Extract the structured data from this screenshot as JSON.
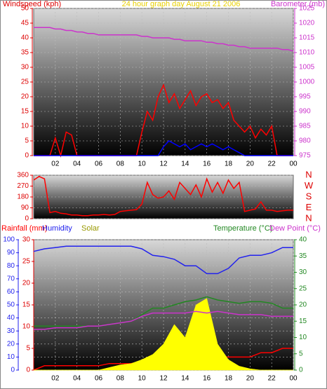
{
  "chart_data": [
    {
      "type": "line",
      "title": "24 hour graph day   August 21 2006",
      "ylabel": "Windspeed (kph)",
      "y2label": "Barometer (mb)",
      "x": [
        0,
        0.5,
        1,
        1.5,
        2,
        2.5,
        3,
        3.5,
        4,
        4.5,
        5,
        5.5,
        6,
        6.5,
        7,
        7.5,
        8,
        8.5,
        9,
        9.5,
        10,
        10.5,
        11,
        11.5,
        12,
        12.5,
        13,
        13.5,
        14,
        14.5,
        15,
        15.5,
        16,
        16.5,
        17,
        17.5,
        18,
        18.5,
        19,
        19.5,
        20,
        20.5,
        21,
        21.5,
        22,
        22.5,
        23,
        23.5,
        24
      ],
      "xlim": [
        0,
        24
      ],
      "xticks": [
        {
          "value": 2,
          "label": "02"
        },
        {
          "value": 4,
          "label": "04"
        },
        {
          "value": 6,
          "label": "06"
        },
        {
          "value": 8,
          "label": "08"
        },
        10,
        12,
        14,
        16,
        18,
        20,
        22,
        {
          "value": 24,
          "label": "00"
        }
      ],
      "ylim": [
        0,
        50
      ],
      "yticks": [
        0,
        5,
        10,
        15,
        20,
        25,
        30,
        35,
        40,
        45,
        50
      ],
      "y2lim": [
        975,
        1025
      ],
      "y2ticks": [
        975,
        980,
        985,
        990,
        995,
        1000,
        1005,
        1010,
        1015,
        1020,
        1025
      ],
      "grid": true,
      "series": [
        {
          "color": "#ff0000",
          "values": [
            0,
            0,
            0,
            0,
            6,
            0,
            8,
            7,
            0,
            0,
            0,
            0,
            0,
            0,
            0,
            0,
            0,
            0,
            0,
            0,
            8,
            15,
            12,
            20,
            24,
            18,
            21,
            16,
            19,
            22,
            17,
            20,
            21,
            18,
            19,
            16,
            18,
            12,
            10,
            8,
            10,
            6,
            9,
            7,
            10,
            0,
            0,
            0,
            0
          ]
        },
        {
          "color": "#0000ff",
          "values": [
            0,
            0,
            0,
            0,
            0,
            0,
            0,
            0,
            0,
            0,
            0,
            0,
            0,
            0,
            0,
            0,
            0,
            0,
            0,
            0,
            0,
            0,
            0,
            0,
            3,
            5,
            4,
            3,
            4,
            2,
            3,
            4,
            3,
            4,
            3,
            2,
            3,
            2,
            1,
            0,
            0,
            0,
            0,
            0,
            0,
            0,
            0,
            0,
            0
          ]
        },
        {
          "color": "#cc33cc",
          "axis": "y2",
          "values": [
            1018.5,
            1018.5,
            1018.5,
            1018.5,
            1018,
            1018,
            1017.5,
            1017.5,
            1017,
            1017,
            1016.5,
            1016.5,
            1016,
            1016,
            1016,
            1016,
            1016,
            1016,
            1016,
            1016,
            1015.5,
            1015.5,
            1015,
            1015,
            1015,
            1015,
            1014.5,
            1014.5,
            1014,
            1014,
            1014,
            1014,
            1013.5,
            1013.5,
            1013,
            1013,
            1012.5,
            1012.5,
            1012,
            1012,
            1011.5,
            1011.5,
            1011.5,
            1011.5,
            1011.5,
            1011.5,
            1011,
            1011,
            1010.5
          ]
        }
      ]
    },
    {
      "type": "line",
      "x": [
        0,
        0.5,
        1,
        1.5,
        2,
        2.5,
        3,
        3.5,
        4,
        4.5,
        5,
        5.5,
        6,
        6.5,
        7,
        7.5,
        8,
        8.5,
        9,
        9.5,
        10,
        10.5,
        11,
        11.5,
        12,
        12.5,
        13,
        13.5,
        14,
        14.5,
        15,
        15.5,
        16,
        16.5,
        17,
        17.5,
        18,
        18.5,
        19,
        19.5,
        20,
        20.5,
        21,
        21.5,
        22,
        22.5,
        23,
        23.5,
        24
      ],
      "xlim": [
        0,
        24
      ],
      "ylim": [
        0,
        360
      ],
      "yticks": [
        0,
        90,
        180,
        270,
        360
      ],
      "y2lim": [
        0,
        360
      ],
      "y2ticks": [
        {
          "value": 360,
          "label": "N"
        },
        {
          "value": 270,
          "label": "W"
        },
        {
          "value": 180,
          "label": "S"
        },
        {
          "value": 90,
          "label": "E"
        },
        {
          "value": 0,
          "label": "N"
        }
      ],
      "grid": true,
      "series": [
        {
          "color": "#ff0000",
          "values": [
            320,
            350,
            330,
            50,
            60,
            45,
            40,
            30,
            30,
            25,
            25,
            30,
            30,
            35,
            30,
            35,
            60,
            65,
            70,
            75,
            120,
            300,
            200,
            170,
            180,
            230,
            160,
            300,
            250,
            200,
            280,
            180,
            330,
            220,
            300,
            210,
            320,
            250,
            300,
            60,
            70,
            80,
            140,
            70,
            70,
            60,
            65,
            70,
            70
          ]
        }
      ]
    },
    {
      "type": "line",
      "x": [
        0,
        1,
        2,
        3,
        4,
        5,
        6,
        7,
        8,
        9,
        10,
        11,
        12,
        13,
        14,
        15,
        16,
        17,
        18,
        19,
        20,
        21,
        22,
        23,
        24
      ],
      "xlim": [
        0,
        24
      ],
      "xticks": [
        {
          "value": 2,
          "label": "02"
        },
        {
          "value": 4,
          "label": "04"
        },
        {
          "value": 6,
          "label": "06"
        },
        {
          "value": 8,
          "label": "08"
        },
        10,
        12,
        14,
        16,
        18,
        20,
        22,
        {
          "value": 24,
          "label": "00"
        }
      ],
      "ylim": [
        0,
        100
      ],
      "yticks": [
        0,
        10,
        20,
        30,
        40,
        50,
        60,
        70,
        80,
        90,
        100
      ],
      "y2lim": [
        0,
        40
      ],
      "y2ticks": [
        0,
        5,
        10,
        15,
        20,
        25,
        30,
        35,
        40
      ],
      "y3lim": [
        0,
        30
      ],
      "y3ticks": [
        0,
        5,
        10,
        15,
        20,
        25,
        30
      ],
      "grid": true,
      "series": [
        {
          "name": "Rainfall (mm)",
          "color": "#ff0000",
          "axis": "y3",
          "values": [
            0,
            1,
            1,
            1,
            1,
            1,
            1,
            1.5,
            1.5,
            1.5,
            2,
            3,
            3,
            3,
            3,
            3,
            3,
            3,
            3,
            3,
            3,
            4,
            4,
            5,
            5
          ]
        },
        {
          "name": "Humidity",
          "color": "#2222ee",
          "values": [
            91,
            93,
            94,
            95,
            95,
            95,
            95,
            95,
            95,
            95,
            93,
            88,
            87,
            85,
            80,
            80,
            74,
            74,
            78,
            86,
            88,
            88,
            90,
            94,
            94
          ]
        },
        {
          "name": "Solar",
          "color": "#ffff00",
          "area": true,
          "values": [
            0,
            0,
            0,
            0,
            0,
            0,
            0,
            2,
            4,
            5,
            8,
            12,
            20,
            35,
            25,
            50,
            55,
            20,
            8,
            3,
            1,
            0,
            0,
            0,
            0
          ]
        },
        {
          "name": "Temperature (°C)",
          "color": "#228822",
          "axis": "y2",
          "values": [
            13.5,
            13.5,
            13.5,
            13.5,
            13.5,
            13.5,
            13.5,
            14,
            14.5,
            15,
            17,
            19,
            19,
            20,
            21,
            21.5,
            22.5,
            21.5,
            21,
            20.5,
            21,
            21,
            20.5,
            19,
            19
          ]
        },
        {
          "name": "Dew Point (°C)",
          "color": "#cc33cc",
          "axis": "y2",
          "values": [
            12.5,
            12.5,
            13,
            13,
            13,
            13.5,
            13.5,
            14,
            14.5,
            15,
            16.5,
            17.5,
            17.5,
            17.5,
            17.5,
            18,
            17.5,
            18,
            17.5,
            17,
            17,
            17,
            16.5,
            16.5,
            16.5
          ]
        }
      ]
    }
  ]
}
